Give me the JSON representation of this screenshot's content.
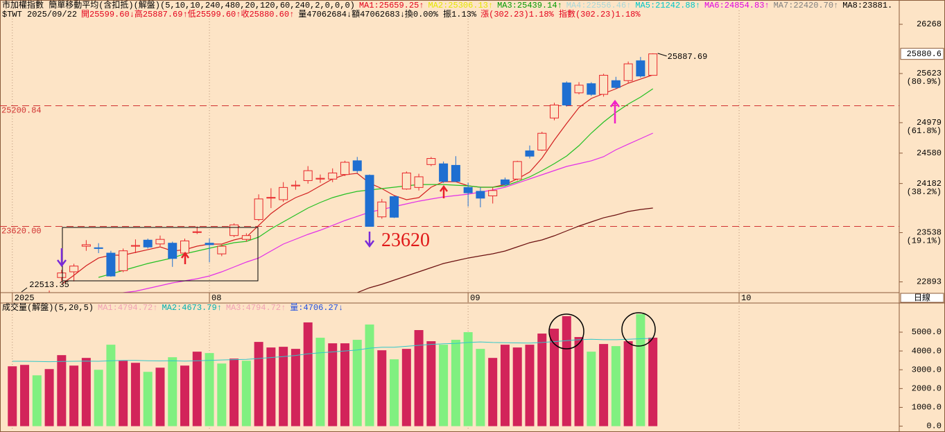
{
  "chart_data": [
    {
      "type": "candlestick",
      "title_parts": [
        {
          "text": "市加權指數  簡單移動平均(含扣抵)(解盤)(5,10,10,240,480,20,120,60,240,2,0,0,0)",
          "color": "#000000"
        },
        {
          "text": "MA1:25659.25↑",
          "color": "#e3001b"
        },
        {
          "text": "MA2:25306.13↑",
          "color": "#e6e600"
        },
        {
          "text": "MA3:25439.14↑",
          "color": "#009a00"
        },
        {
          "text": "MA4:22556.46↑",
          "color": "#a8d8d8"
        },
        {
          "text": "MA5:21242.88↑",
          "color": "#00c8c8"
        },
        {
          "text": "MA6:24854.83↑",
          "color": "#e000e0"
        },
        {
          "text": "MA7:22420.70↑",
          "color": "#808080"
        },
        {
          "text": "MA8:23881.",
          "color": "#000000"
        }
      ],
      "info_parts": [
        {
          "text": "$TWT 2025/09/22",
          "color": "#000000"
        },
        {
          "text": "開25599.60↓高25887.69↑低25599.60↑收25880.60↑",
          "color": "#e3001b"
        },
        {
          "text": "量47062684↓額47062683↓換0.00% 振1.13%",
          "color": "#000000"
        },
        {
          "text": "漲(302.23)1.18% 指數(302.23)1.18%",
          "color": "#e3001b"
        }
      ],
      "xlim": [
        -1,
        72
      ],
      "xticks": [
        {
          "value": 0,
          "label": "2025"
        },
        {
          "value": 16,
          "label": "08"
        },
        {
          "value": 37,
          "label": "09"
        },
        {
          "value": 59,
          "label": "10"
        }
      ],
      "ylim": [
        22725,
        26450
      ],
      "yticks": [
        22893,
        23538,
        24182,
        24580,
        24979,
        25623,
        26268
      ],
      "fib_labels": [
        {
          "value": 23538,
          "label": "(19.1%)"
        },
        {
          "value": 24182,
          "label": "(38.2%)"
        },
        {
          "value": 24979,
          "label": "(61.8%)"
        },
        {
          "value": 25623,
          "label": "(80.9%)"
        }
      ],
      "last_price": 25880.6,
      "hlines": [
        {
          "value": 25200.84,
          "label": "25200.84"
        },
        {
          "value": 23620,
          "label": "23620.00"
        }
      ],
      "high_label": {
        "index": 52,
        "value": 25887.69
      },
      "low_label": {
        "index": 3,
        "value": 22513.35
      },
      "callout": {
        "index": 29,
        "value": 23620
      },
      "period_label": "日線",
      "up_color": "#e8262a",
      "down_color": "#1f6fd1",
      "open": [
        22560,
        22600,
        22640,
        22620,
        22950,
        23025,
        23360,
        23340,
        23270,
        23040,
        23360,
        23440,
        23390,
        23400,
        23270,
        23540,
        23400,
        23260,
        23500,
        23450,
        23710,
        23990,
        23970,
        24150,
        24220,
        24240,
        24240,
        24300,
        24480,
        24290,
        23745,
        24010,
        24110,
        24130,
        24430,
        24440,
        24420,
        24130,
        24080,
        24020,
        24230,
        24240,
        24610,
        24620,
        25040,
        25500,
        25370,
        25490,
        25350,
        25530,
        25530,
        25790,
        25599.6
      ],
      "high": [
        22640,
        22680,
        22680,
        22780,
        23050,
        23130,
        23440,
        23400,
        23300,
        23330,
        23450,
        23460,
        23500,
        23420,
        23460,
        23620,
        23460,
        23380,
        23660,
        23530,
        24040,
        24120,
        24200,
        24220,
        24410,
        24300,
        24380,
        24480,
        24530,
        24300,
        23980,
        24020,
        24340,
        24310,
        24530,
        24470,
        24540,
        24190,
        24130,
        24130,
        24260,
        24480,
        24680,
        24860,
        25240,
        25520,
        25510,
        25510,
        25620,
        25580,
        25780,
        25840,
        25887.69
      ],
      "low": [
        22540,
        22570,
        22560,
        22513.35,
        22900,
        22900,
        23300,
        23270,
        22960,
        23020,
        23270,
        23330,
        23360,
        23090,
        23250,
        23520,
        23150,
        23230,
        23480,
        23420,
        23690,
        23860,
        23940,
        24100,
        24180,
        24190,
        24200,
        24280,
        24320,
        23620,
        23720,
        23730,
        24100,
        24090,
        24410,
        24190,
        24200,
        23880,
        23870,
        23920,
        24150,
        24220,
        24510,
        24610,
        25010,
        25190,
        25350,
        25330,
        25320,
        25420,
        25500,
        25570,
        25599.6
      ],
      "close": [
        22600,
        22640,
        22600,
        22740,
        23010,
        23100,
        23380,
        23330,
        22970,
        23300,
        23370,
        23350,
        23450,
        23200,
        23430,
        23550,
        23380,
        23360,
        23640,
        23500,
        23980,
        24000,
        24130,
        24160,
        24350,
        24250,
        24320,
        24460,
        24350,
        23620,
        23940,
        23740,
        24320,
        24270,
        24510,
        24210,
        24210,
        24060,
        23990,
        24090,
        24170,
        24470,
        24540,
        24840,
        25210,
        25210,
        25470,
        25350,
        25600,
        25440,
        25750,
        25590,
        25880.6
      ],
      "lines": [
        {
          "color": "#d21f1f",
          "values": [
            null,
            null,
            null,
            null,
            22861,
            22979,
            23106,
            23206,
            23243,
            23243,
            23279,
            23315,
            23352,
            23297,
            23315,
            23361,
            23388,
            23388,
            23443,
            23479,
            23633,
            23788,
            23906,
            23997,
            24060,
            24151,
            24242,
            24297,
            24315,
            24187,
            24115,
            24024,
            23970,
            23997,
            24133,
            24206,
            24206,
            24151,
            24133,
            24133,
            24169,
            24242,
            24333,
            24515,
            24751,
            24969,
            25178,
            25296,
            25360,
            25423,
            25496,
            25550,
            25605
          ]
        },
        {
          "color": "#22c022",
          "values": [
            null,
            null,
            null,
            null,
            null,
            null,
            null,
            22952,
            22997,
            23043,
            23088,
            23134,
            23170,
            23206,
            23261,
            23297,
            23334,
            23370,
            23406,
            23424,
            23479,
            23588,
            23679,
            23770,
            23861,
            23933,
            23997,
            24042,
            24079,
            24097,
            24115,
            24133,
            24151,
            24169,
            24169,
            24169,
            24160,
            24151,
            24133,
            24133,
            24151,
            24206,
            24269,
            24351,
            24442,
            24542,
            24678,
            24842,
            24987,
            25114,
            25223,
            25314,
            25423
          ]
        },
        {
          "color": "#e22fe8",
          "values": [
            null,
            null,
            null,
            null,
            null,
            null,
            null,
            null,
            null,
            22752,
            22770,
            22807,
            22843,
            22879,
            22907,
            22934,
            22970,
            23025,
            23088,
            23152,
            23206,
            23297,
            23388,
            23452,
            23515,
            23570,
            23633,
            23697,
            23751,
            23806,
            23842,
            23879,
            23915,
            23951,
            23979,
            24006,
            24024,
            24042,
            24070,
            24097,
            24133,
            24187,
            24242,
            24297,
            24351,
            24406,
            24442,
            24479,
            24533,
            24624,
            24697,
            24769,
            24842
          ]
        },
        {
          "color": "#6b0f0f",
          "values": [
            null,
            null,
            null,
            null,
            null,
            null,
            null,
            null,
            null,
            null,
            null,
            null,
            null,
            null,
            null,
            null,
            null,
            null,
            null,
            null,
            null,
            null,
            null,
            null,
            null,
            null,
            null,
            null,
            22752,
            22816,
            22861,
            22916,
            22970,
            23025,
            23079,
            23134,
            23170,
            23206,
            23234,
            23261,
            23297,
            23352,
            23406,
            23443,
            23497,
            23561,
            23624,
            23679,
            23733,
            23770,
            23815,
            23842,
            23861
          ]
        }
      ]
    },
    {
      "type": "bar",
      "title_parts": [
        {
          "text": "成交量(解盤)(5,20,5)",
          "color": "#000000"
        },
        {
          "text": "MA1:4794.72↑",
          "color": "#f0a0b4"
        },
        {
          "text": "MA2:4673.79↑",
          "color": "#00b0b0"
        },
        {
          "text": "MA3:4794.72↑",
          "color": "#f0a0b4"
        },
        {
          "text": "量:4706.27↓",
          "color": "#2050e0"
        }
      ],
      "ylim": [
        -200,
        6550
      ],
      "yticks": [
        {
          "value": 0,
          "label": "0.0"
        },
        {
          "value": 1000,
          "label": "1000.0"
        },
        {
          "value": 2000,
          "label": "2000.0"
        },
        {
          "value": 3000,
          "label": "3000.0"
        },
        {
          "value": 4000,
          "label": "4000.0"
        },
        {
          "value": 5000,
          "label": "5000.0"
        }
      ],
      "values": [
        3185,
        3259,
        2704,
        3037,
        3778,
        3222,
        3630,
        3000,
        4333,
        3481,
        3370,
        2889,
        3111,
        3667,
        3222,
        3963,
        3889,
        3333,
        3593,
        3481,
        4481,
        4185,
        4222,
        4111,
        5519,
        4704,
        4407,
        4407,
        4593,
        5407,
        4037,
        3556,
        4111,
        5111,
        4519,
        4333,
        4593,
        5000,
        4111,
        3630,
        4333,
        4185,
        4333,
        4926,
        5185,
        5852,
        4741,
        3963,
        4370,
        4259,
        4519,
        5963,
        4706.27
      ],
      "colors": [
        "#d2245a",
        "#d2245a",
        "#80f080",
        "#d2245a",
        "#d2245a",
        "#d2245a",
        "#d2245a",
        "#80f080",
        "#80f080",
        "#d2245a",
        "#d2245a",
        "#80f080",
        "#d2245a",
        "#80f080",
        "#d2245a",
        "#d2245a",
        "#80f080",
        "#80f080",
        "#d2245a",
        "#80f080",
        "#d2245a",
        "#d2245a",
        "#d2245a",
        "#d2245a",
        "#d2245a",
        "#80f080",
        "#d2245a",
        "#d2245a",
        "#80f080",
        "#80f080",
        "#d2245a",
        "#80f080",
        "#d2245a",
        "#d2245a",
        "#d2245a",
        "#80f080",
        "#80f080",
        "#80f080",
        "#80f080",
        "#d2245a",
        "#d2245a",
        "#d2245a",
        "#d2245a",
        "#d2245a",
        "#d2245a",
        "#d2245a",
        "#d2245a",
        "#80f080",
        "#d2245a",
        "#80f080",
        "#d2245a",
        "#80f080",
        "#d2245a"
      ],
      "lines": [
        {
          "color": "#30c8c8",
          "values": [
            3450,
            3450,
            3440,
            3430,
            3440,
            3450,
            3460,
            3450,
            3480,
            3500,
            3500,
            3480,
            3470,
            3480,
            3460,
            3480,
            3500,
            3520,
            3540,
            3550,
            3600,
            3650,
            3700,
            3760,
            3850,
            3900,
            3950,
            4000,
            4050,
            4150,
            4200,
            4200,
            4250,
            4300,
            4350,
            4380,
            4400,
            4450,
            4480,
            4450,
            4440,
            4430,
            4420,
            4450,
            4500,
            4550,
            4600,
            4620,
            4600,
            4600,
            4620,
            4650,
            4673.79
          ]
        }
      ]
    }
  ]
}
